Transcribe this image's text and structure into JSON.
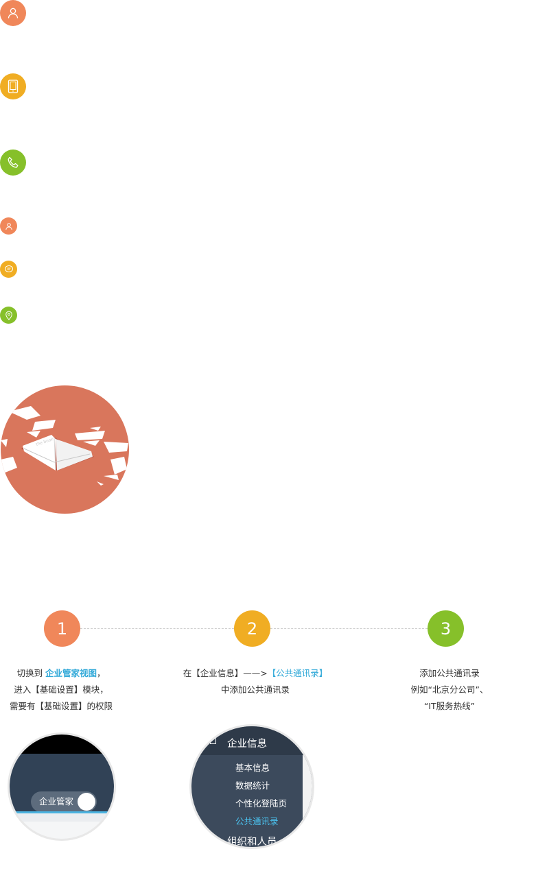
{
  "icons": {
    "large": [
      "user-icon",
      "tablet-icon",
      "phone-icon"
    ],
    "small": [
      "user-icon",
      "chat-icon",
      "location-pin-icon"
    ]
  },
  "colors": {
    "orange": "#f0875a",
    "yellow": "#f0ad23",
    "green": "#86c02a",
    "accent": "#2fa8d8",
    "hero": "#d9765c"
  },
  "steps": [
    {
      "number": "1",
      "line1_prefix": "切换到 ",
      "line1_highlight": "企业管家视图",
      "line1_suffix": "，",
      "line2": "进入【基础设置】模块，",
      "line3": "需要有【基础设置】的权限"
    },
    {
      "number": "2",
      "line1_prefix": "在【企业信息】——>",
      "line1_highlight": "【公共通讯录】",
      "line2": "中添加公共通讯录"
    },
    {
      "number": "3",
      "line1": "添加公共通讯录",
      "line2": "例如“北京分公司”、",
      "line3": "“IT服务热线”"
    }
  ],
  "zoom1": {
    "toggle_label": "企业管家"
  },
  "zoom2": {
    "title": "企业信息",
    "items": [
      "基本信息",
      "数据统计",
      "个性化登陆页",
      "公共通讯录"
    ],
    "active_item": "公共通讯录",
    "next_section": "组织和人员"
  }
}
